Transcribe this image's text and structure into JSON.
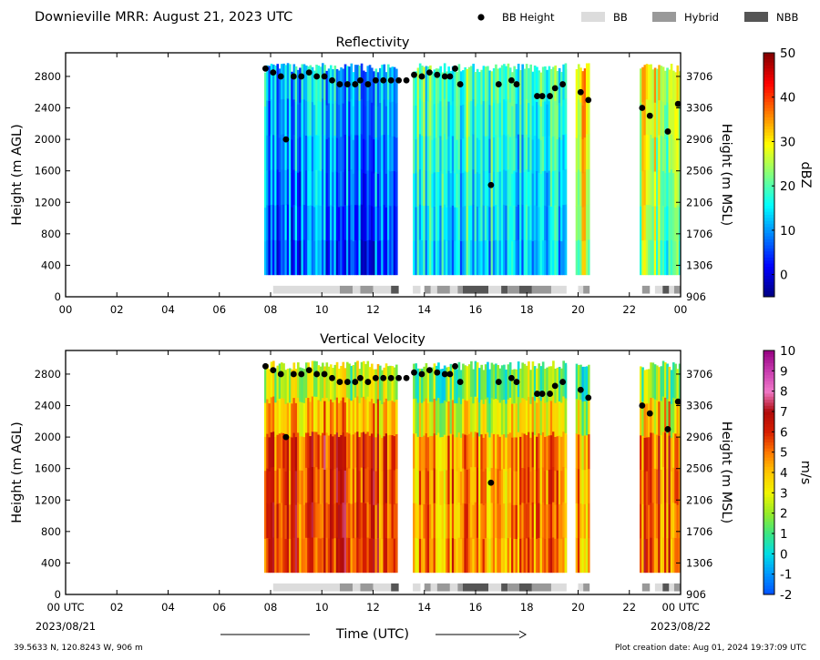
{
  "header": {
    "title": "Downieville MRR:  August 21, 2023 UTC",
    "legend": [
      {
        "label": "BB Height",
        "kind": "marker",
        "color": "#000000"
      },
      {
        "label": "BB",
        "kind": "swatch",
        "color": "#dcdcdc"
      },
      {
        "label": "Hybrid",
        "kind": "swatch",
        "color": "#999999"
      },
      {
        "label": "NBB",
        "kind": "swatch",
        "color": "#555555"
      }
    ]
  },
  "chart_data": [
    {
      "type": "heatmap",
      "title": "Reflectivity",
      "ylabel": "Height (m AGL)",
      "ylabel_right": "Height (m MSL)",
      "ylim": [
        0,
        3100
      ],
      "xlim": [
        0,
        24
      ],
      "yticks": [
        0,
        400,
        800,
        1200,
        1600,
        2000,
        2400,
        2800
      ],
      "yticks_right": [
        "906",
        "1306",
        "1706",
        "2106",
        "2506",
        "2906",
        "3306",
        "3706"
      ],
      "xticks": [
        "00",
        "02",
        "04",
        "06",
        "08",
        "10",
        "12",
        "14",
        "16",
        "18",
        "20",
        "22",
        "00"
      ],
      "colorbar": {
        "label": "dBZ",
        "min": -5,
        "max": 50,
        "ticks": [
          0,
          10,
          20,
          30,
          40,
          50
        ]
      }
    },
    {
      "type": "heatmap",
      "title": "Vertical Velocity",
      "ylabel": "Height (m AGL)",
      "ylabel_right": "Height (m MSL)",
      "ylim": [
        0,
        3100
      ],
      "xlim": [
        0,
        24
      ],
      "yticks": [
        0,
        400,
        800,
        1200,
        1600,
        2000,
        2400,
        2800
      ],
      "yticks_right": [
        "906",
        "1306",
        "1706",
        "2106",
        "2506",
        "2906",
        "3306",
        "3706"
      ],
      "xticks": [
        "00 UTC",
        "02",
        "04",
        "06",
        "08",
        "10",
        "12",
        "14",
        "16",
        "18",
        "20",
        "22",
        "00 UTC"
      ],
      "colorbar": {
        "label": "m/s",
        "min": -2,
        "max": 10,
        "ticks": [
          -2,
          -1,
          0,
          1,
          2,
          3,
          4,
          5,
          6,
          7,
          8,
          9,
          10
        ]
      }
    }
  ],
  "data_segments": [
    {
      "start": 7.75,
      "end": 12.95,
      "refl": 9,
      "vel": 5.6
    },
    {
      "start": 13.55,
      "end": 19.55,
      "refl": 16,
      "vel": 4.6
    },
    {
      "start": 19.9,
      "end": 20.45,
      "refl": 28,
      "vel": 4.2
    },
    {
      "start": 22.4,
      "end": 24.0,
      "refl": 24,
      "vel": 5.2
    }
  ],
  "bb_points": [
    [
      7.8,
      2900
    ],
    [
      8.1,
      2850
    ],
    [
      8.4,
      2800
    ],
    [
      8.6,
      2000
    ],
    [
      8.9,
      2800
    ],
    [
      9.2,
      2800
    ],
    [
      9.5,
      2850
    ],
    [
      9.8,
      2800
    ],
    [
      10.1,
      2800
    ],
    [
      10.4,
      2750
    ],
    [
      10.7,
      2700
    ],
    [
      11.0,
      2700
    ],
    [
      11.3,
      2700
    ],
    [
      11.5,
      2750
    ],
    [
      11.8,
      2700
    ],
    [
      12.1,
      2750
    ],
    [
      12.4,
      2750
    ],
    [
      12.7,
      2750
    ],
    [
      13.0,
      2750
    ],
    [
      13.3,
      2750
    ],
    [
      13.6,
      2820
    ],
    [
      13.9,
      2800
    ],
    [
      14.2,
      2850
    ],
    [
      14.5,
      2820
    ],
    [
      14.8,
      2800
    ],
    [
      15.0,
      2800
    ],
    [
      15.2,
      2900
    ],
    [
      15.4,
      2700
    ],
    [
      16.6,
      1420
    ],
    [
      16.9,
      2700
    ],
    [
      17.4,
      2750
    ],
    [
      17.6,
      2700
    ],
    [
      18.4,
      2550
    ],
    [
      18.6,
      2550
    ],
    [
      18.9,
      2550
    ],
    [
      19.1,
      2650
    ],
    [
      19.4,
      2700
    ],
    [
      20.1,
      2600
    ],
    [
      20.4,
      2500
    ],
    [
      22.5,
      2400
    ],
    [
      22.8,
      2300
    ],
    [
      23.5,
      2100
    ],
    [
      23.9,
      2450
    ]
  ],
  "bb_blocks": [
    {
      "start": 8.1,
      "end": 10.7,
      "kind": "BB"
    },
    {
      "start": 10.7,
      "end": 11.2,
      "kind": "Hybrid"
    },
    {
      "start": 11.2,
      "end": 11.5,
      "kind": "BB"
    },
    {
      "start": 11.5,
      "end": 12.0,
      "kind": "Hybrid"
    },
    {
      "start": 12.0,
      "end": 12.7,
      "kind": "BB"
    },
    {
      "start": 12.7,
      "end": 13.0,
      "kind": "NBB"
    },
    {
      "start": 13.55,
      "end": 13.85,
      "kind": "BB"
    },
    {
      "start": 14.0,
      "end": 14.25,
      "kind": "Hybrid"
    },
    {
      "start": 14.25,
      "end": 14.5,
      "kind": "BB"
    },
    {
      "start": 14.5,
      "end": 15.0,
      "kind": "Hybrid"
    },
    {
      "start": 15.0,
      "end": 15.3,
      "kind": "BB"
    },
    {
      "start": 15.3,
      "end": 15.5,
      "kind": "Hybrid"
    },
    {
      "start": 15.5,
      "end": 16.5,
      "kind": "NBB"
    },
    {
      "start": 16.5,
      "end": 17.0,
      "kind": "BB"
    },
    {
      "start": 17.0,
      "end": 17.25,
      "kind": "NBB"
    },
    {
      "start": 17.25,
      "end": 17.7,
      "kind": "Hybrid"
    },
    {
      "start": 17.7,
      "end": 18.2,
      "kind": "NBB"
    },
    {
      "start": 18.2,
      "end": 18.95,
      "kind": "Hybrid"
    },
    {
      "start": 18.95,
      "end": 19.55,
      "kind": "BB"
    },
    {
      "start": 20.0,
      "end": 20.2,
      "kind": "BB"
    },
    {
      "start": 20.2,
      "end": 20.45,
      "kind": "Hybrid"
    },
    {
      "start": 22.5,
      "end": 22.8,
      "kind": "Hybrid"
    },
    {
      "start": 23.0,
      "end": 23.3,
      "kind": "BB"
    },
    {
      "start": 23.3,
      "end": 23.55,
      "kind": "NBB"
    },
    {
      "start": 23.55,
      "end": 23.75,
      "kind": "BB"
    },
    {
      "start": 23.75,
      "end": 24.0,
      "kind": "Hybrid"
    }
  ],
  "x_axis": {
    "label": "Time (UTC)",
    "start_date": "2023/08/21",
    "end_date": "2023/08/22"
  },
  "footer": {
    "location": "39.5633 N, 120.8243 W, 906 m",
    "created": "Plot creation date: Aug 01, 2024 19:37:09 UTC"
  }
}
